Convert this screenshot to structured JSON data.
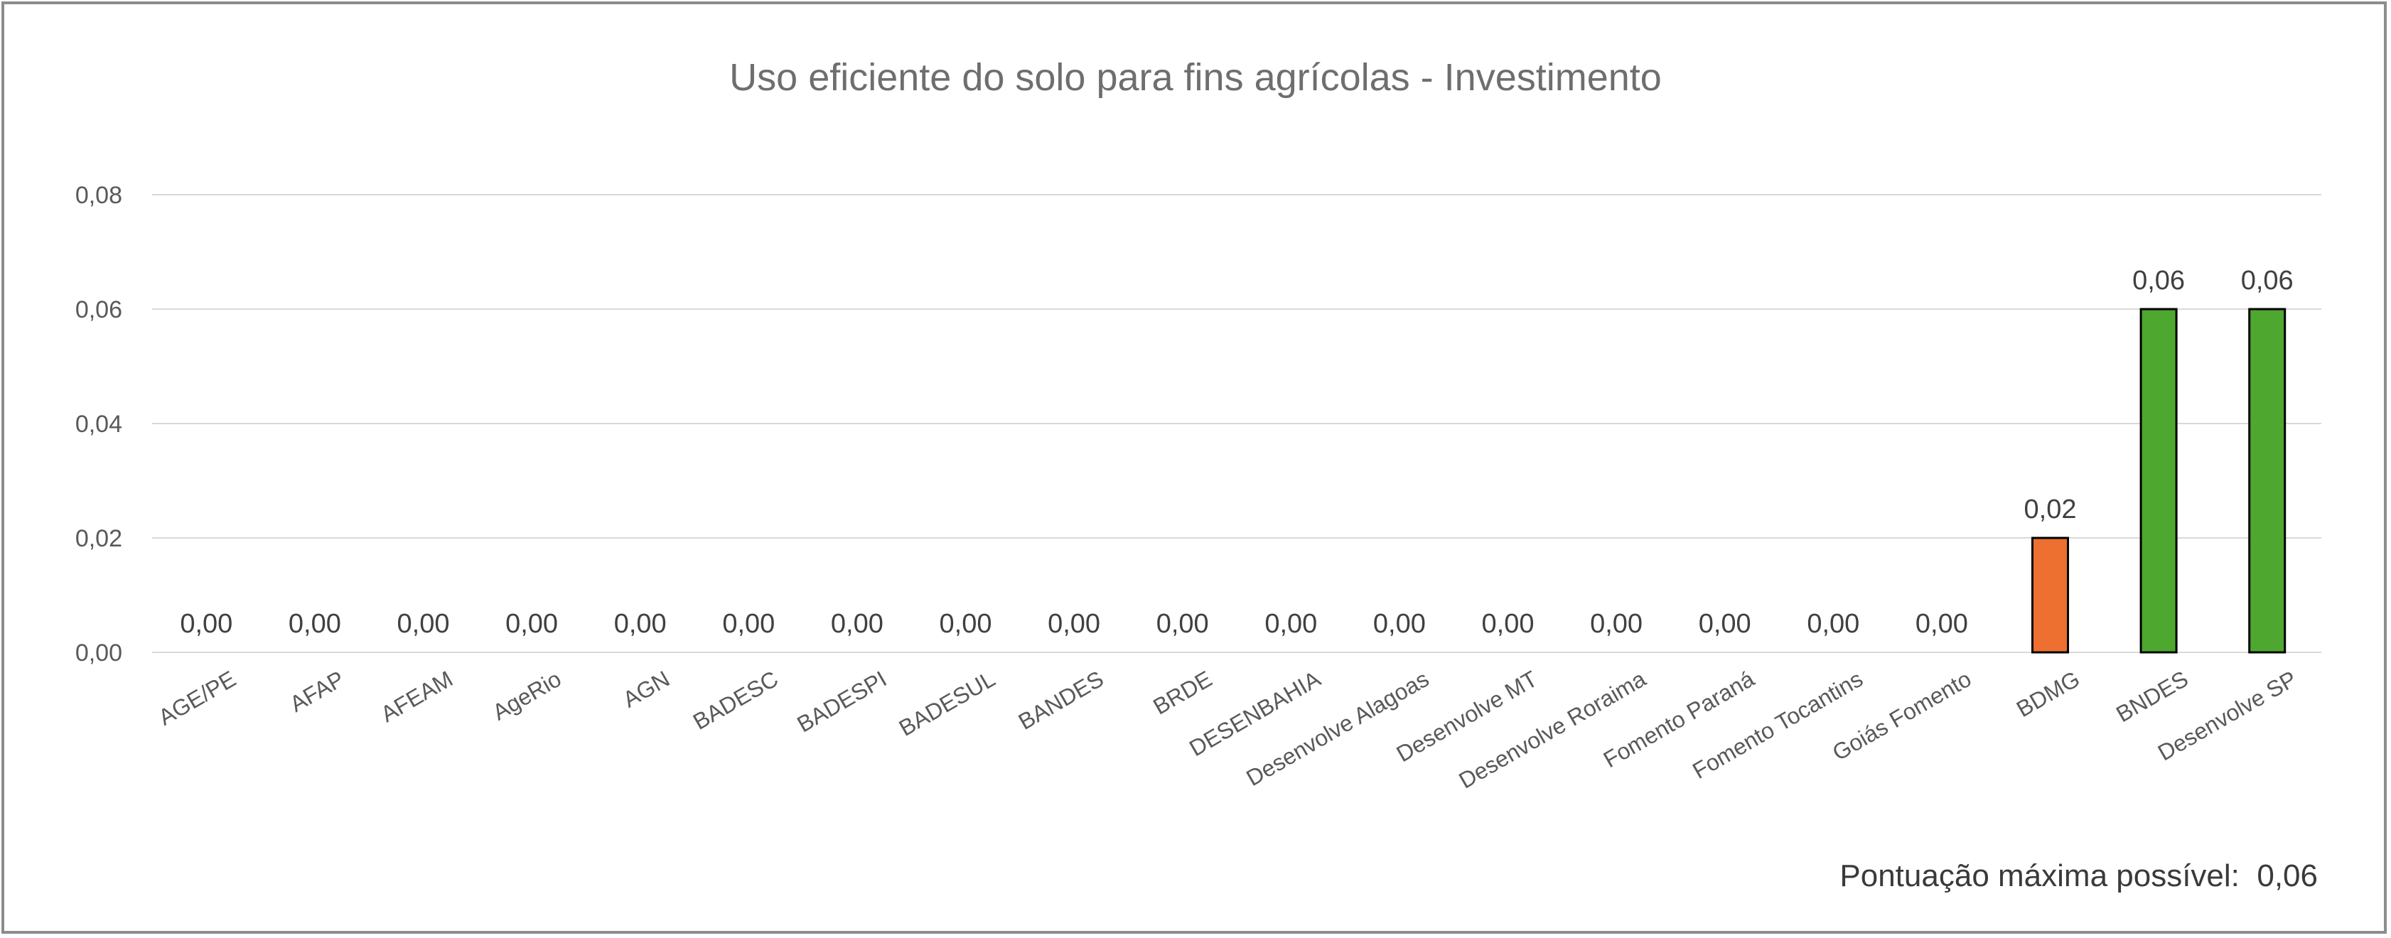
{
  "chart_data": {
    "type": "bar",
    "title": "Uso eficiente do solo para fins agrícolas - Investimento",
    "xlabel": "",
    "ylabel": "",
    "ylim": [
      0,
      0.08
    ],
    "yticks": [
      0,
      0.02,
      0.04,
      0.06,
      0.08
    ],
    "ytick_labels": [
      "0,00",
      "0,02",
      "0,04",
      "0,06",
      "0,08"
    ],
    "grid": true,
    "legend": "none",
    "categories": [
      "AGE/PE",
      "AFAP",
      "AFEAM",
      "AgeRio",
      "AGN",
      "BADESC",
      "BADESPI",
      "BADESUL",
      "BANDES",
      "BRDE",
      "DESENBAHIA",
      "Desenvolve Alagoas",
      "Desenvolve MT",
      "Desenvolve Roraima",
      "Fomento Paraná",
      "Fomento Tocantins",
      "Goiás Fomento",
      "BDMG",
      "BNDES",
      "Desenvolve SP"
    ],
    "values": [
      0,
      0,
      0,
      0,
      0,
      0,
      0,
      0,
      0,
      0,
      0,
      0,
      0,
      0,
      0,
      0,
      0,
      0.02,
      0.06,
      0.06
    ],
    "data_labels": [
      "0,00",
      "0,00",
      "0,00",
      "0,00",
      "0,00",
      "0,00",
      "0,00",
      "0,00",
      "0,00",
      "0,00",
      "0,00",
      "0,00",
      "0,00",
      "0,00",
      "0,00",
      "0,00",
      "0,00",
      "0,02",
      "0,06",
      "0,06"
    ],
    "bar_colors": [
      "#70ad47",
      "#70ad47",
      "#70ad47",
      "#70ad47",
      "#70ad47",
      "#70ad47",
      "#70ad47",
      "#70ad47",
      "#70ad47",
      "#70ad47",
      "#70ad47",
      "#70ad47",
      "#70ad47",
      "#70ad47",
      "#70ad47",
      "#70ad47",
      "#70ad47",
      "#ed7031",
      "#4ea72e",
      "#4ea72e"
    ],
    "bar_outline": "#000000",
    "gridline_color": "#d9d9d9"
  },
  "footnote": {
    "label": "Pontuação máxima possível:",
    "value": "0,06"
  }
}
